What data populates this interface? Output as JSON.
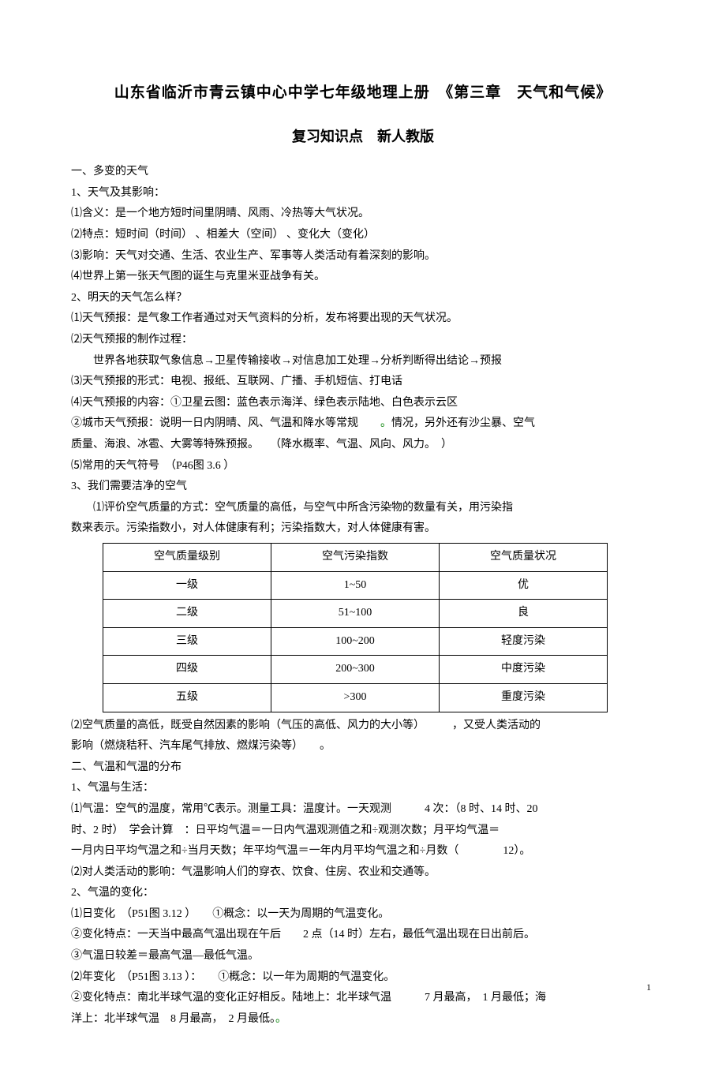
{
  "title": "山东省临沂市青云镇中心中学七年级地理上册　《第三章　天气和气候》",
  "subtitle": "复习知识点　新人教版",
  "sec1": {
    "h": "一、多变的天气",
    "p1": "1、天气及其影响：",
    "p1_1": "⑴含义：是一个地方短时间里阴晴、风雨、冷热等大气状况。",
    "p1_2": "⑵特点：短时间（时间） 、相差大（空间） 、变化大（变化）",
    "p1_3": "⑶影响：天气对交通、生活、农业生产、军事等人类活动有着深刻的影响。",
    "p1_4": "⑷世界上第一张天气图的诞生与克里米亚战争有关。",
    "p2": "2、明天的天气怎么样？",
    "p2_1": "⑴天气预报：是气象工作者通过对天气资料的分析，发布将要出现的天气状况。",
    "p2_2": "⑵天气预报的制作过程：",
    "p2_2b": "世界各地获取气象信息→卫星传输接收→对信息加工处理→分析判断得出结论→预报",
    "p2_3": "⑶天气预报的形式：电视、报纸、互联网、广播、手机短信、打电话",
    "p2_4": "⑷天气预报的内容：①卫星云图：蓝色表示海洋、绿色表示陆地、白色表示云区",
    "p2_4b": "②城市天气预报：说明一日内阴晴、风、气温和降水等常规　　",
    "p2_4b2": "情况，另外还有沙尘暴、空气",
    "p2_4c": "质量、海浪、冰雹、大雾等特殊预报。　　（降水概率、气温、风向、风力。　）",
    "p2_5": "⑸常用的天气符号　（P46图 3.6 ）",
    "p3": "3、我们需要洁净的空气",
    "p3_1": "⑴评价空气质量的方式：空气质量的高低，与空气中所含污染物的数量有关，用污染指",
    "p3_1b": "数来表示。污染指数小，对人体健康有利；污染指数大，对人体健康有害。"
  },
  "table": {
    "headers": [
      "空气质量级别",
      "空气污染指数",
      "空气质量状况"
    ],
    "rows": [
      [
        "一级",
        "1~50",
        "优"
      ],
      [
        "二级",
        "51~100",
        "良"
      ],
      [
        "三级",
        "100~200",
        "轻度污染"
      ],
      [
        "四级",
        "200~300",
        "中度污染"
      ],
      [
        "五级",
        ">300",
        "重度污染"
      ]
    ]
  },
  "sec1b": {
    "p3_2": "⑵空气质量的高低，既受自然因素的影响（气压的高低、风力的大小等）　　　，又受人类活动的",
    "p3_2b": "影响（燃烧秸秆、汽车尾气排放、燃煤污染等）　　。"
  },
  "sec2": {
    "h": "二、气温和气温的分布",
    "p1": "1、气温与生活：",
    "p1_1a": "⑴气温：空气的温度，常用℃表示。测量工具：温度计。一天观测　　　4 次：（8 时、14 时、20",
    "p1_1b": "时、2 时）　学会计算　：日平均气温＝一日内气温观测值之和÷观测次数；月平均气温＝",
    "p1_1c": "一月内日平均气温之和÷当月天数；年平均气温＝一年内月平均气温之和÷月数（　　　　12）。",
    "p1_2": "⑵对人类活动的影响：气温影响人们的穿衣、饮食、住房、农业和交通等。",
    "p2": "2、气温的变化：",
    "p2_1": "⑴日变化　（P51图 3.12 ）　　①概念：以一天为周期的气温变化。",
    "p2_1b": "②变化特点：一天当中最高气温出现在午后　　2 点（14 时）左右，最低气温出现在日出前后。",
    "p2_1c": "③气温日较差＝最高气温—最低气温。",
    "p2_2": "⑵年变化　（P51图 3.13 ）：　　①概念：以一年为周期的气温变化。",
    "p2_2b": "②变化特点：南北半球气温的变化正好相反。陆地上：北半球气温　　　7 月最高，　1 月最低；海",
    "p2_2c": "洋上：北半球气温　8 月最高，　2 月最低。"
  },
  "pageNum": "1"
}
